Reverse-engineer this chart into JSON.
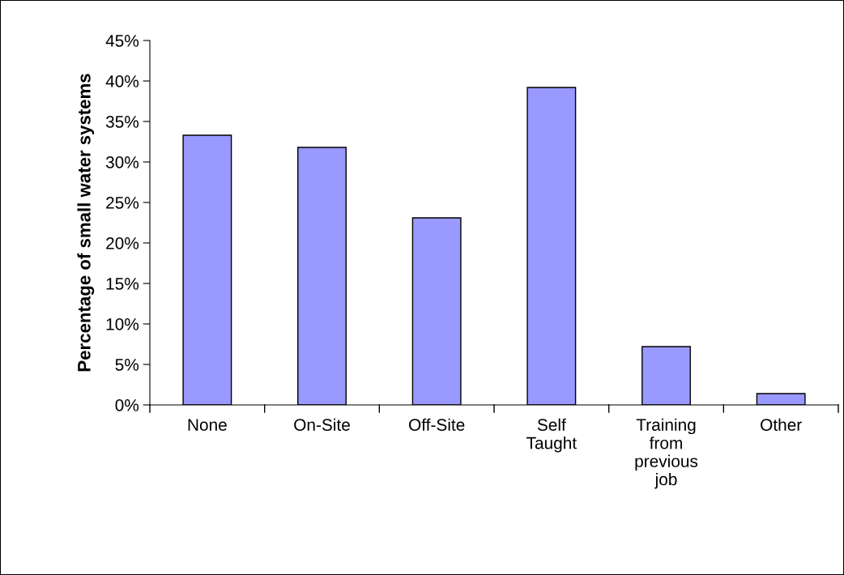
{
  "chart_data": {
    "type": "bar",
    "ylabel": "Percentage of small water systems",
    "categories": [
      "None",
      "On-Site",
      "Off-Site",
      "Self\nTaught",
      "Training\nfrom\nprevious\njob",
      "Other"
    ],
    "values": [
      33.3,
      31.8,
      23.1,
      39.2,
      7.2,
      1.4
    ],
    "color": "#9999ff",
    "ylim": [
      0,
      45
    ],
    "yticks": [
      {
        "value": 0,
        "label": "0%"
      },
      {
        "value": 5,
        "label": "5%"
      },
      {
        "value": 10,
        "label": "10%"
      },
      {
        "value": 15,
        "label": "15%"
      },
      {
        "value": 20,
        "label": "20%"
      },
      {
        "value": 25,
        "label": "25%"
      },
      {
        "value": 30,
        "label": "30%"
      },
      {
        "value": 35,
        "label": "35%"
      },
      {
        "value": 40,
        "label": "40%"
      },
      {
        "value": 45,
        "label": "45%"
      }
    ],
    "grid": false,
    "legend": false
  }
}
